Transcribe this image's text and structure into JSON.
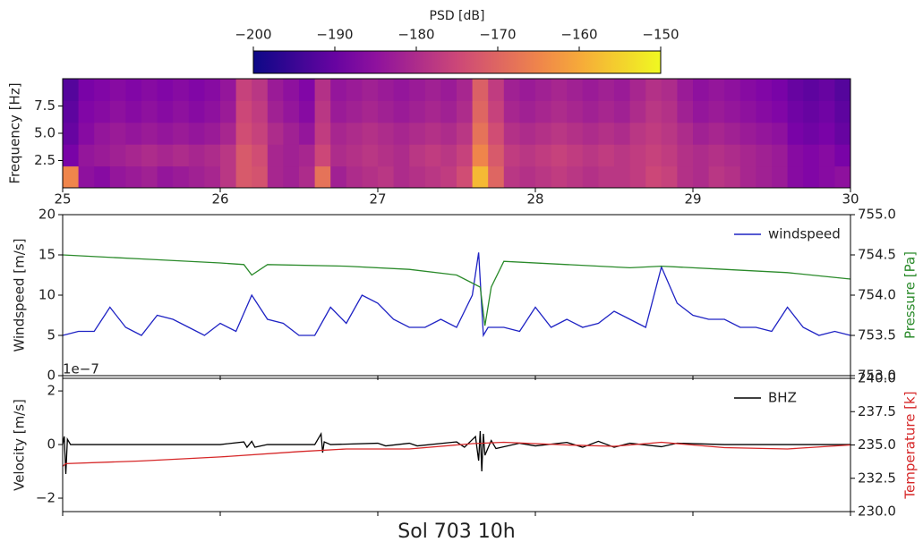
{
  "chart_data": [
    {
      "type": "heatmap",
      "ylabel": "Frequency [Hz]",
      "colormap": "plasma",
      "xlim": [
        25,
        30
      ],
      "xticks": [
        25,
        26,
        27,
        28,
        29,
        30
      ],
      "ylim": [
        0,
        10
      ],
      "yticks": [
        2.5,
        {
          "value": 5,
          "label": "5.0"
        },
        7.5
      ],
      "xbins": [
        25,
        25.1,
        25.2,
        25.3,
        25.4,
        25.5,
        25.6,
        25.7,
        25.8,
        25.9,
        26,
        26.1,
        26.2,
        26.3,
        26.4,
        26.5,
        26.6,
        26.7,
        26.8,
        26.9,
        27,
        27.1,
        27.2,
        27.3,
        27.4,
        27.5,
        27.6,
        27.7,
        27.8,
        27.9,
        28,
        28.1,
        28.2,
        28.3,
        28.4,
        28.5,
        28.6,
        28.7,
        28.8,
        28.9,
        29,
        29.1,
        29.2,
        29.3,
        29.4,
        29.5,
        29.6,
        29.7,
        29.8,
        29.9,
        30
      ],
      "ybins": [
        0,
        2,
        4,
        6,
        8,
        10
      ],
      "z": [
        [
          -165,
          -185,
          -186,
          -184,
          -183,
          -182,
          -184,
          -183,
          -182,
          -181,
          -178,
          -172,
          -173,
          -181,
          -182,
          -180,
          -168,
          -182,
          -180,
          -179,
          -178,
          -180,
          -179,
          -178,
          -177,
          -174,
          -158,
          -170,
          -178,
          -179,
          -178,
          -177,
          -178,
          -179,
          -178,
          -178,
          -177,
          -175,
          -176,
          -179,
          -180,
          -178,
          -179,
          -181,
          -182,
          -183,
          -186,
          -187,
          -186,
          -185
        ],
        [
          -188,
          -184,
          -183,
          -182,
          -181,
          -180,
          -181,
          -180,
          -181,
          -180,
          -178,
          -172,
          -174,
          -181,
          -182,
          -181,
          -175,
          -180,
          -179,
          -178,
          -179,
          -180,
          -178,
          -177,
          -178,
          -176,
          -165,
          -172,
          -177,
          -178,
          -177,
          -176,
          -177,
          -178,
          -177,
          -178,
          -177,
          -176,
          -177,
          -179,
          -180,
          -179,
          -180,
          -181,
          -182,
          -183,
          -186,
          -187,
          -186,
          -188
        ],
        [
          -190,
          -186,
          -184,
          -183,
          -184,
          -183,
          -184,
          -183,
          -184,
          -183,
          -181,
          -174,
          -176,
          -180,
          -182,
          -184,
          -177,
          -181,
          -180,
          -179,
          -180,
          -181,
          -180,
          -179,
          -180,
          -178,
          -168,
          -174,
          -179,
          -180,
          -179,
          -178,
          -179,
          -180,
          -179,
          -180,
          -178,
          -177,
          -178,
          -180,
          -182,
          -181,
          -182,
          -183,
          -184,
          -185,
          -188,
          -189,
          -188,
          -190
        ],
        [
          -191,
          -187,
          -186,
          -185,
          -186,
          -185,
          -186,
          -185,
          -186,
          -185,
          -183,
          -175,
          -177,
          -182,
          -184,
          -186,
          -178,
          -183,
          -182,
          -181,
          -182,
          -183,
          -182,
          -181,
          -182,
          -180,
          -170,
          -176,
          -181,
          -182,
          -181,
          -180,
          -181,
          -182,
          -181,
          -182,
          -180,
          -178,
          -179,
          -182,
          -184,
          -183,
          -184,
          -185,
          -186,
          -187,
          -189,
          -190,
          -189,
          -191
        ],
        [
          -192,
          -188,
          -187,
          -186,
          -187,
          -186,
          -187,
          -186,
          -187,
          -186,
          -184,
          -176,
          -178,
          -183,
          -185,
          -187,
          -179,
          -184,
          -183,
          -182,
          -183,
          -184,
          -183,
          -182,
          -183,
          -181,
          -171,
          -177,
          -182,
          -183,
          -182,
          -181,
          -182,
          -183,
          -182,
          -183,
          -181,
          -179,
          -180,
          -183,
          -185,
          -184,
          -185,
          -186,
          -187,
          -188,
          -190,
          -191,
          -190,
          -192
        ]
      ],
      "colorbar": {
        "label": "PSD [dB]",
        "lim": [
          -200,
          -150
        ],
        "ticks": [
          {
            "value": -200,
            "label": "−200"
          },
          {
            "value": -190,
            "label": "−190"
          },
          {
            "value": -180,
            "label": "−180"
          },
          {
            "value": -170,
            "label": "−170"
          },
          {
            "value": -160,
            "label": "−160"
          },
          {
            "value": -150,
            "label": "−150"
          }
        ]
      }
    },
    {
      "type": "line",
      "ylabel": "Windspeed [m/s]",
      "y2label": "Pressure [Pa]",
      "legend": "upper right",
      "xlim": [
        25,
        30
      ],
      "xticks": [
        25,
        26,
        27,
        28,
        29,
        30
      ],
      "ylim": [
        0,
        20
      ],
      "yticks": [
        0,
        5,
        10,
        15,
        20
      ],
      "y2lim": [
        753,
        755
      ],
      "y2ticks": [
        {
          "value": 753,
          "label": "753.0"
        },
        {
          "value": 753.5,
          "label": "753.5"
        },
        {
          "value": 754,
          "label": "754.0"
        },
        {
          "value": 754.5,
          "label": "754.5"
        },
        {
          "value": 755,
          "label": "755.0"
        }
      ],
      "series": [
        {
          "name": "windspeed",
          "color": "#1f23c4",
          "x": [
            25,
            25.1,
            25.2,
            25.3,
            25.4,
            25.5,
            25.6,
            25.7,
            25.8,
            25.9,
            26,
            26.1,
            26.2,
            26.3,
            26.4,
            26.5,
            26.6,
            26.7,
            26.8,
            26.9,
            27,
            27.1,
            27.2,
            27.3,
            27.4,
            27.5,
            27.6,
            27.64,
            27.67,
            27.7,
            27.8,
            27.9,
            28,
            28.1,
            28.2,
            28.3,
            28.4,
            28.5,
            28.6,
            28.7,
            28.8,
            28.9,
            29,
            29.1,
            29.2,
            29.3,
            29.4,
            29.5,
            29.6,
            29.7,
            29.8,
            29.9,
            30
          ],
          "values": [
            5,
            5.5,
            5.5,
            8.5,
            6,
            5,
            7.5,
            7,
            6,
            5,
            6.5,
            5.5,
            10,
            7,
            6.5,
            5,
            5,
            8.5,
            6.5,
            10,
            9,
            7,
            6,
            6,
            7,
            6,
            10,
            15.3,
            5,
            6,
            6,
            5.5,
            8.5,
            6,
            7,
            6,
            6.5,
            8,
            7,
            6,
            13.5,
            9,
            7.5,
            7,
            7,
            6,
            6,
            5.5,
            8.5,
            6,
            5,
            5.5,
            5
          ]
        },
        {
          "color": "#2a8a2a",
          "axis": "y2",
          "x": [
            25,
            25.5,
            26,
            26.15,
            26.2,
            26.3,
            26.8,
            27.2,
            27.5,
            27.6,
            27.65,
            27.68,
            27.72,
            27.8,
            28.2,
            28.6,
            28.8,
            29.2,
            29.6,
            30
          ],
          "values": [
            754.5,
            754.45,
            754.4,
            754.38,
            754.25,
            754.38,
            754.36,
            754.32,
            754.25,
            754.15,
            754.1,
            753.62,
            754.1,
            754.42,
            754.38,
            754.34,
            754.36,
            754.32,
            754.28,
            754.2
          ]
        }
      ]
    },
    {
      "type": "line",
      "ylabel": "Velocity [m/s]",
      "y_offset_label": "1e−7",
      "y2label": "Temperature [k]",
      "xlabel": "Sol 703 10h",
      "legend": "upper right",
      "xlim": [
        25,
        30
      ],
      "xticks": [
        25,
        26,
        27,
        28,
        29,
        30
      ],
      "ylim": [
        -2.5e-07,
        2.47e-07
      ],
      "yticks": [
        {
          "value": -2e-07,
          "label": "−2"
        },
        0,
        {
          "value": 2e-07,
          "label": "2"
        }
      ],
      "y2lim": [
        230,
        240
      ],
      "y2ticks": [
        {
          "value": 230,
          "label": "230.0"
        },
        {
          "value": 232.5,
          "label": "232.5"
        },
        {
          "value": 235,
          "label": "235.0"
        },
        {
          "value": 237.5,
          "label": "237.5"
        },
        {
          "value": 240,
          "label": "240.0"
        }
      ],
      "series": [
        {
          "name": "BHZ",
          "color": "#000000",
          "x": [
            25,
            25.01,
            25.02,
            25.03,
            25.05,
            26,
            26.15,
            26.17,
            26.2,
            26.22,
            26.3,
            26.6,
            26.64,
            26.65,
            26.66,
            26.7,
            27,
            27.05,
            27.2,
            27.25,
            27.5,
            27.55,
            27.62,
            27.64,
            27.65,
            27.66,
            27.67,
            27.68,
            27.72,
            27.75,
            27.9,
            28,
            28.2,
            28.3,
            28.4,
            28.5,
            28.6,
            28.8,
            28.9,
            29.2,
            30
          ],
          "values": [
            0,
            3e-08,
            -1.1e-07,
            2e-08,
            0,
            0,
            1e-08,
            -1e-08,
            1.2e-08,
            -1e-08,
            0,
            0,
            4e-08,
            -3e-08,
            1e-08,
            0,
            5e-09,
            -5e-09,
            5e-09,
            -5e-09,
            1e-08,
            -1e-08,
            3e-08,
            -6e-08,
            5e-08,
            -1e-07,
            4e-08,
            -4e-08,
            1.5e-08,
            -1.5e-08,
            5e-09,
            -5e-09,
            8e-09,
            -1e-08,
            1.2e-08,
            -1e-08,
            5e-09,
            -8e-09,
            5e-09,
            0,
            0
          ]
        },
        {
          "color": "#d62728",
          "axis": "y2",
          "x": [
            25,
            25.02,
            25.5,
            26,
            26.5,
            26.8,
            27.2,
            27.5,
            27.6,
            27.8,
            28.2,
            28.5,
            28.8,
            29.2,
            29.6,
            30
          ],
          "values": [
            233.4,
            233.6,
            233.8,
            234.1,
            234.5,
            234.7,
            234.7,
            235,
            235.1,
            235.2,
            235,
            234.9,
            235.2,
            234.8,
            234.7,
            235
          ]
        }
      ]
    }
  ]
}
